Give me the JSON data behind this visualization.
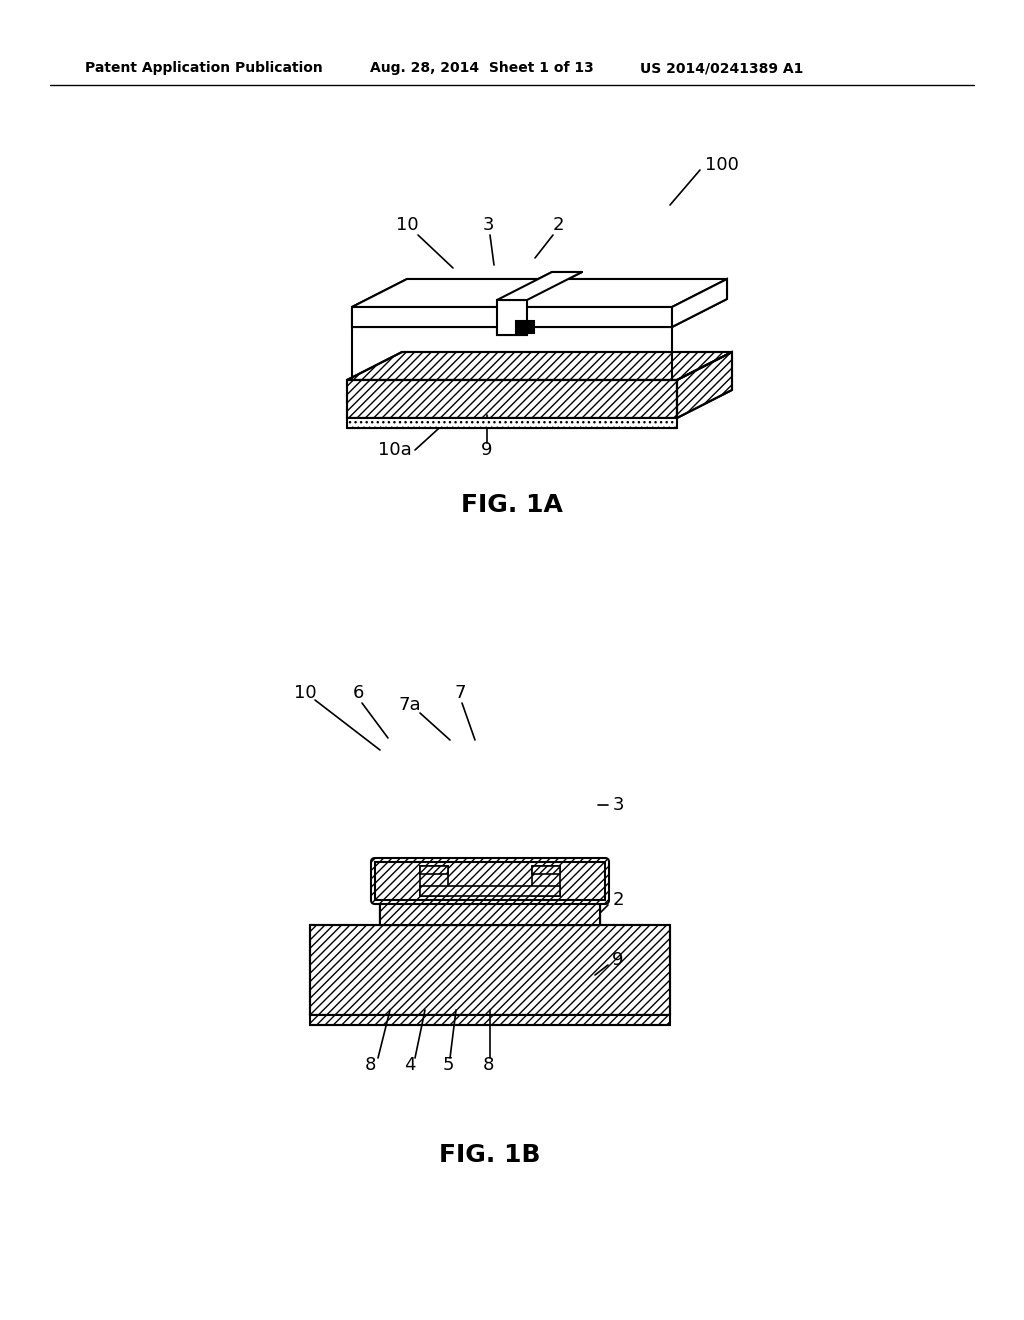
{
  "header_left": "Patent Application Publication",
  "header_mid": "Aug. 28, 2014  Sheet 1 of 13",
  "header_right": "US 2014/0241389 A1",
  "fig1a_caption": "FIG. 1A",
  "fig1b_caption": "FIG. 1B",
  "bg_color": "#ffffff",
  "line_color": "#000000",
  "hatch_color": "#000000",
  "hatch_fill": "////",
  "label_100": "100",
  "label_10": "10",
  "label_3": "3",
  "label_2": "2",
  "label_10a": "10a",
  "label_9": "9",
  "label_10b": "10",
  "label_6": "6",
  "label_7a": "7a",
  "label_7": "7",
  "label_3b": "3",
  "label_2b": "2",
  "label_9b": "9",
  "label_8l": "8",
  "label_4": "4",
  "label_5": "5",
  "label_8r": "8"
}
